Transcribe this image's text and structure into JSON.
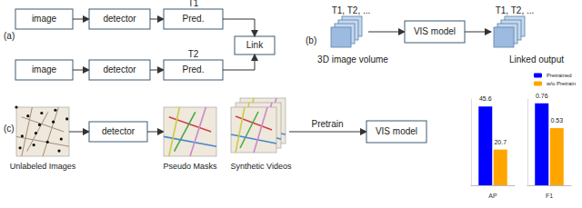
{
  "diagram": {
    "panels": [
      {
        "label": "(a)",
        "rows": [
          {
            "boxes": [
              "image",
              "detector",
              "Pred."
            ],
            "time": "T1"
          },
          {
            "boxes": [
              "image",
              "detector",
              "Pred."
            ],
            "time": "T2"
          }
        ],
        "link": "Link"
      },
      {
        "label": "(b)",
        "input_time": "T1, T2, ...",
        "input": "3D image volume",
        "model": "VIS model",
        "output_time": "T1, T2, ...",
        "output": "Linked output"
      },
      {
        "label": "(c)",
        "steps": [
          "Unlabeled Images",
          "detector",
          "Pseudo Masks",
          "Synthetic Videos"
        ],
        "arrow": "Pretrain",
        "model": "VIS model"
      }
    ]
  },
  "chart_data": [
    {
      "type": "bar",
      "categories": [
        "AP"
      ],
      "series": [
        {
          "name": "Pretrained",
          "color": "#0000ff",
          "values": [
            45.6
          ]
        },
        {
          "name": "w/o Pretrain",
          "color": "#ffa500",
          "values": [
            20.7
          ]
        }
      ],
      "ylim": [
        0,
        50
      ],
      "data_labels": true,
      "tick_labels": "x",
      "legend": "upper right"
    },
    {
      "type": "bar",
      "categories": [
        "F1"
      ],
      "series": [
        {
          "name": "Pretrained",
          "color": "#0000ff",
          "values": [
            0.76
          ]
        },
        {
          "name": "w/o Pretrain",
          "color": "#ffa500",
          "values": [
            0.53
          ]
        }
      ],
      "ylim": [
        0,
        0.8
      ],
      "data_labels": true,
      "tick_labels": "x"
    }
  ]
}
